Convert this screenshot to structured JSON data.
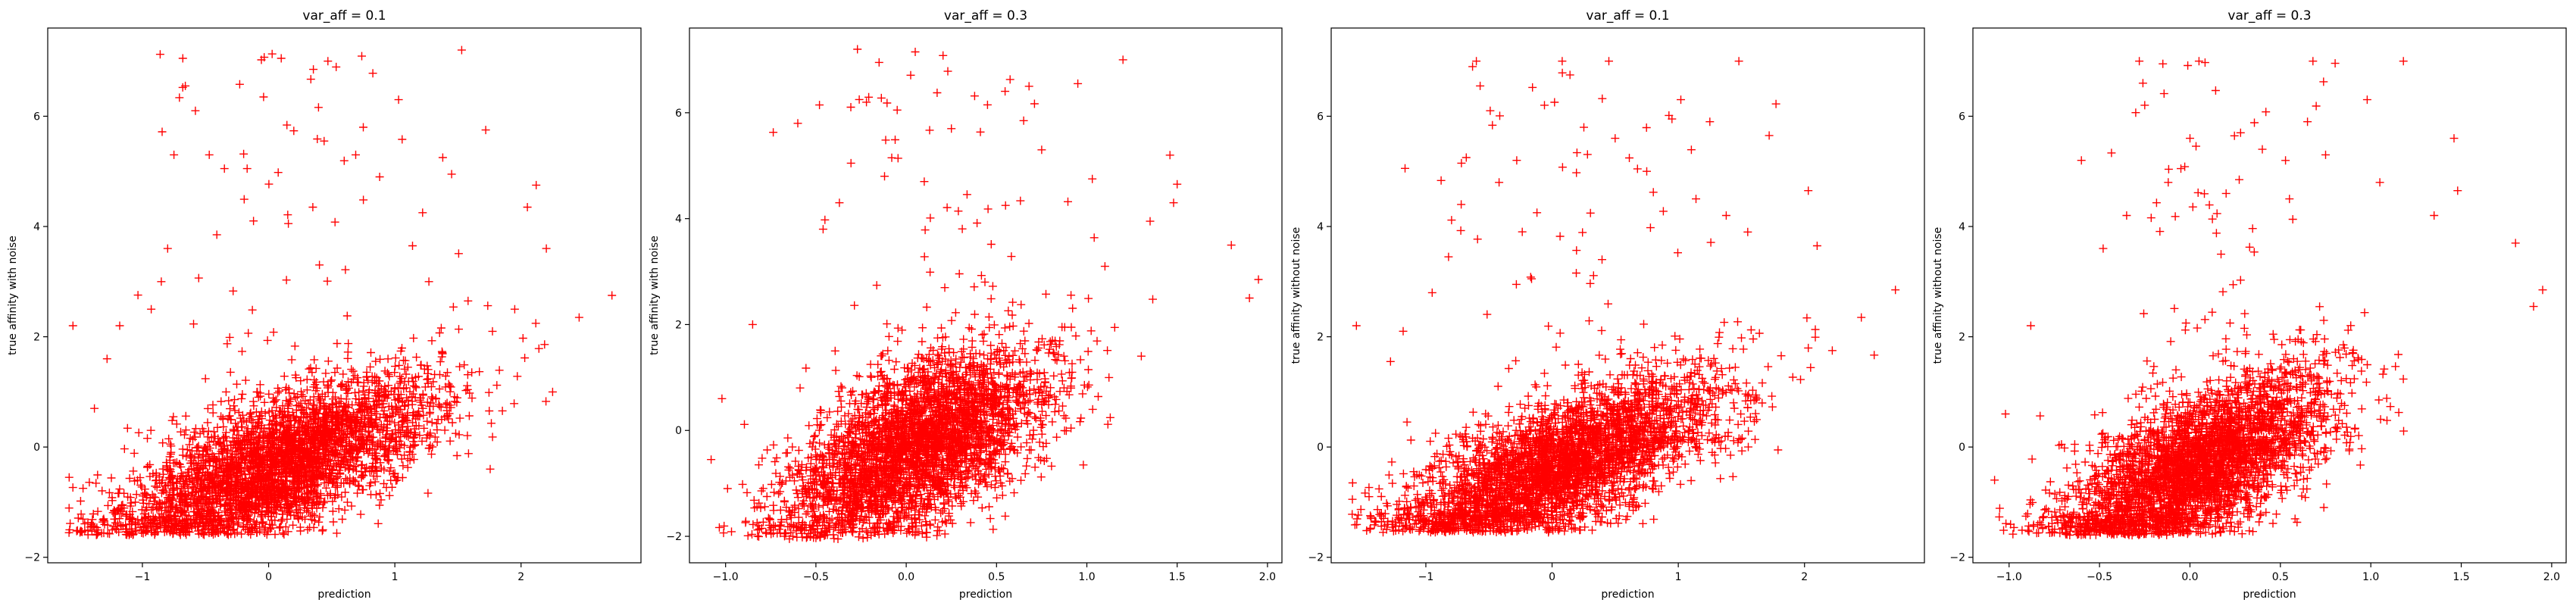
{
  "marker_color": "#ff0000",
  "chart_data": [
    {
      "type": "scatter",
      "title": "var_aff = 0.1",
      "xlabel": "prediction",
      "ylabel": "true affinity with noise",
      "xlim": [
        -1.75,
        2.95
      ],
      "ylim": [
        -2.1,
        7.6
      ],
      "xticks": [
        -1,
        0,
        1,
        2
      ],
      "yticks": [
        -2,
        0,
        2,
        4,
        6
      ],
      "dist": {
        "n": 3600,
        "xmean": 0.05,
        "xsd": 0.62,
        "xmin": -1.6,
        "xmax": 2.75,
        "ymin": -1.6,
        "slope": 0.9,
        "ysd": 0.55,
        "tail": 0.012,
        "ymax": 7.2
      },
      "series": [
        {
          "marker": "+",
          "points": [
            [
              -1.58,
              -0.55
            ],
            [
              -1.55,
              2.2
            ],
            [
              -1.47,
              -0.75
            ],
            [
              -1.38,
              0.7
            ],
            [
              -1.28,
              1.6
            ],
            [
              -1.18,
              2.2
            ],
            [
              -0.93,
              2.5
            ],
            [
              -0.85,
              3.0
            ],
            [
              -0.8,
              3.6
            ],
            [
              -0.75,
              5.3
            ],
            [
              -0.68,
              7.05
            ],
            [
              -0.66,
              6.55
            ],
            [
              -0.58,
              6.1
            ],
            [
              -0.47,
              5.3
            ],
            [
              -0.41,
              3.85
            ],
            [
              -0.35,
              5.05
            ],
            [
              -0.17,
              5.05
            ],
            [
              -0.12,
              4.1
            ],
            [
              -0.04,
              6.35
            ],
            [
              0.1,
              7.05
            ],
            [
              0.35,
              4.35
            ],
            [
              0.44,
              5.55
            ],
            [
              0.47,
              7.0
            ],
            [
              0.69,
              5.3
            ],
            [
              0.75,
              5.8
            ],
            [
              0.88,
              4.9
            ],
            [
              1.03,
              6.3
            ],
            [
              1.14,
              3.65
            ],
            [
              1.22,
              4.25
            ],
            [
              1.27,
              3.0
            ],
            [
              1.38,
              5.25
            ],
            [
              1.45,
              4.95
            ],
            [
              1.53,
              7.2
            ],
            [
              1.58,
              2.65
            ],
            [
              1.72,
              5.75
            ],
            [
              1.95,
              2.5
            ],
            [
              2.05,
              4.35
            ],
            [
              2.12,
              4.75
            ],
            [
              2.2,
              3.6
            ],
            [
              2.25,
              1.0
            ],
            [
              2.46,
              2.35
            ],
            [
              2.72,
              2.75
            ]
          ]
        }
      ]
    },
    {
      "type": "scatter",
      "title": "var_aff = 0.3",
      "xlabel": "prediction",
      "ylabel": "true affinity with noise",
      "xlim": [
        -1.2,
        2.08
      ],
      "ylim": [
        -2.5,
        7.6
      ],
      "xticks": [
        -1.0,
        -0.5,
        0.0,
        0.5,
        1.0,
        1.5,
        2.0
      ],
      "yticks": [
        -2,
        0,
        2,
        4,
        6
      ],
      "dist": {
        "n": 3600,
        "xmean": 0.05,
        "xsd": 0.36,
        "xmin": -1.08,
        "xmax": 1.95,
        "ymin": -2.05,
        "slope": 1.5,
        "ysd": 0.7,
        "tail": 0.012,
        "ymax": 7.2
      },
      "series": [
        {
          "marker": "+",
          "points": [
            [
              -1.08,
              -0.55
            ],
            [
              -1.02,
              0.6
            ],
            [
              -0.85,
              2.0
            ],
            [
              -0.6,
              5.8
            ],
            [
              -0.46,
              3.8
            ],
            [
              -0.37,
              4.3
            ],
            [
              -0.27,
              7.2
            ],
            [
              -0.26,
              6.25
            ],
            [
              -0.22,
              6.2
            ],
            [
              -0.15,
              6.95
            ],
            [
              -0.12,
              4.8
            ],
            [
              -0.08,
              5.15
            ],
            [
              -0.05,
              6.05
            ],
            [
              0.05,
              7.15
            ],
            [
              0.1,
              4.7
            ],
            [
              0.25,
              5.7
            ],
            [
              0.45,
              6.15
            ],
            [
              0.55,
              4.25
            ],
            [
              0.65,
              5.85
            ],
            [
              0.68,
              6.5
            ],
            [
              0.75,
              5.3
            ],
            [
              0.95,
              6.55
            ],
            [
              1.03,
              4.75
            ],
            [
              1.1,
              3.1
            ],
            [
              1.2,
              7.0
            ],
            [
              1.35,
              3.95
            ],
            [
              1.46,
              5.2
            ],
            [
              1.48,
              4.3
            ],
            [
              1.5,
              4.65
            ],
            [
              1.8,
              3.5
            ],
            [
              1.9,
              2.5
            ],
            [
              1.95,
              2.85
            ]
          ]
        }
      ]
    },
    {
      "type": "scatter",
      "title": "var_aff = 0.1",
      "xlabel": "prediction",
      "ylabel": "true affinity without noise",
      "xlim": [
        -1.75,
        2.95
      ],
      "ylim": [
        -2.1,
        7.6
      ],
      "xticks": [
        -1,
        0,
        1,
        2
      ],
      "yticks": [
        -2,
        0,
        2,
        4,
        6
      ],
      "dist": {
        "n": 3600,
        "xmean": 0.05,
        "xsd": 0.62,
        "xmin": -1.6,
        "xmax": 2.75,
        "ymin": -1.55,
        "slope": 0.9,
        "ysd": 0.55,
        "tail": 0.012,
        "ymax": 7.0
      },
      "series": [
        {
          "marker": "+",
          "points": [
            [
              -1.58,
              -0.65
            ],
            [
              -1.55,
              2.2
            ],
            [
              -1.45,
              -0.9
            ],
            [
              -1.28,
              1.55
            ],
            [
              -1.18,
              2.1
            ],
            [
              -0.95,
              2.8
            ],
            [
              -0.82,
              3.45
            ],
            [
              -0.72,
              4.4
            ],
            [
              -0.68,
              5.25
            ],
            [
              -0.63,
              6.9
            ],
            [
              -0.6,
              7.0
            ],
            [
              -0.57,
              6.55
            ],
            [
              -0.49,
              6.1
            ],
            [
              -0.42,
              4.8
            ],
            [
              -0.28,
              5.2
            ],
            [
              -0.12,
              4.25
            ],
            [
              -0.06,
              6.2
            ],
            [
              0.08,
              7.0
            ],
            [
              0.45,
              7.0
            ],
            [
              0.5,
              5.6
            ],
            [
              0.75,
              5.0
            ],
            [
              0.95,
              5.95
            ],
            [
              1.02,
              6.3
            ],
            [
              1.14,
              4.5
            ],
            [
              1.25,
              5.9
            ],
            [
              1.38,
              4.2
            ],
            [
              1.48,
              7.0
            ],
            [
              1.55,
              3.9
            ],
            [
              1.72,
              5.65
            ],
            [
              2.03,
              4.65
            ],
            [
              2.1,
              3.65
            ],
            [
              2.22,
              1.75
            ],
            [
              2.45,
              2.35
            ],
            [
              2.72,
              2.85
            ]
          ]
        }
      ]
    },
    {
      "type": "scatter",
      "title": "var_aff = 0.3",
      "xlabel": "prediction",
      "ylabel": "true affinity without noise",
      "xlim": [
        -1.2,
        2.08
      ],
      "ylim": [
        -2.1,
        7.6
      ],
      "xticks": [
        -1.0,
        -0.5,
        0.0,
        0.5,
        1.0,
        1.5,
        2.0
      ],
      "yticks": [
        -2,
        0,
        2,
        4,
        6
      ],
      "dist": {
        "n": 3600,
        "xmean": 0.05,
        "xsd": 0.36,
        "xmin": -1.08,
        "xmax": 1.95,
        "ymin": -1.6,
        "slope": 1.5,
        "ysd": 0.6,
        "tail": 0.012,
        "ymax": 7.0
      },
      "series": [
        {
          "marker": "+",
          "points": [
            [
              -1.08,
              -0.6
            ],
            [
              -1.02,
              0.6
            ],
            [
              -0.88,
              2.2
            ],
            [
              -0.6,
              5.2
            ],
            [
              -0.48,
              3.6
            ],
            [
              -0.35,
              4.2
            ],
            [
              -0.28,
              7.0
            ],
            [
              -0.26,
              6.6
            ],
            [
              -0.25,
              6.2
            ],
            [
              -0.15,
              6.95
            ],
            [
              -0.12,
              4.8
            ],
            [
              -0.05,
              5.05
            ],
            [
              0.0,
              5.6
            ],
            [
              0.05,
              7.0
            ],
            [
              0.2,
              4.6
            ],
            [
              0.28,
              5.7
            ],
            [
              0.4,
              5.4
            ],
            [
              0.55,
              4.5
            ],
            [
              0.65,
              5.9
            ],
            [
              0.68,
              7.0
            ],
            [
              0.75,
              5.3
            ],
            [
              0.98,
              6.3
            ],
            [
              1.05,
              4.8
            ],
            [
              1.18,
              7.0
            ],
            [
              1.35,
              4.2
            ],
            [
              1.46,
              5.6
            ],
            [
              1.48,
              4.65
            ],
            [
              1.8,
              3.7
            ],
            [
              1.9,
              2.55
            ],
            [
              1.95,
              2.85
            ]
          ]
        }
      ]
    }
  ]
}
